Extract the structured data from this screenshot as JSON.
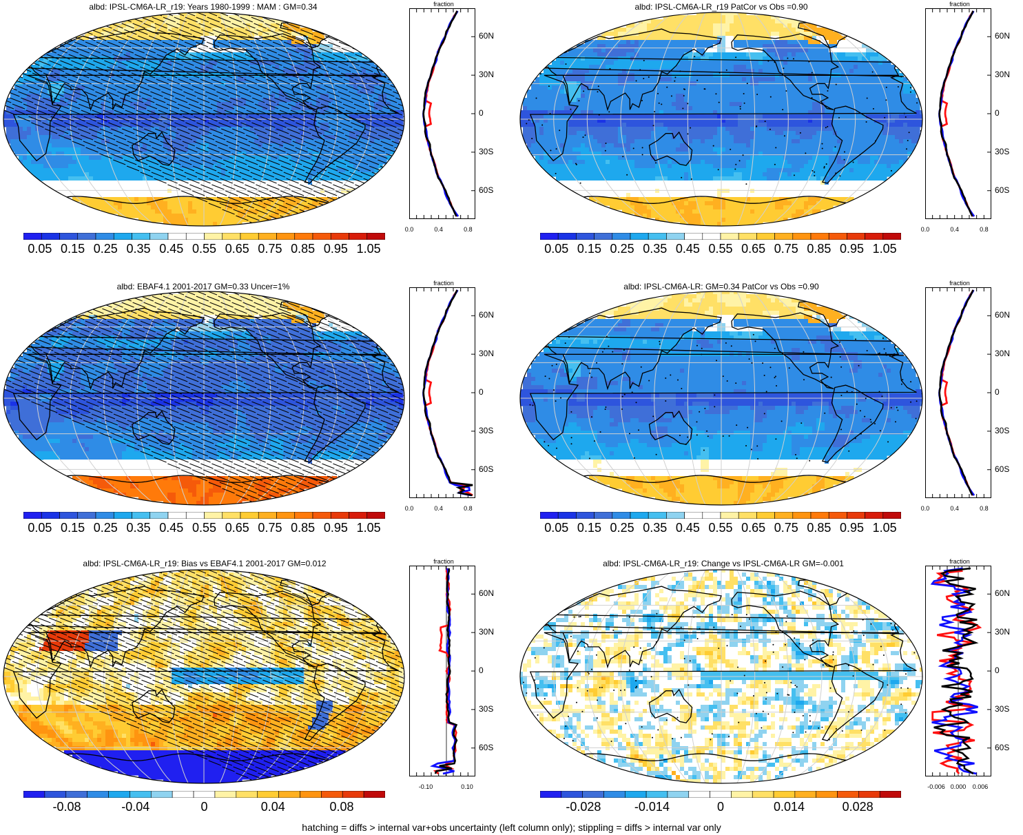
{
  "figure": {
    "footer": "hatching = diffs > internal var+obs uncertainty (left column only); stippling = diffs > internal var only",
    "colors": {
      "seq_scale": [
        "#2020f0",
        "#1a33e6",
        "#2e55dd",
        "#3f6fd8",
        "#2f8ce6",
        "#1ea8ee",
        "#45bff0",
        "#8fd3f0",
        "#ffffff",
        "#ffffff",
        "#fff3a6",
        "#ffe066",
        "#ffcc33",
        "#ffb020",
        "#ff9410",
        "#ff7a0a",
        "#f55a0a",
        "#e83a0a",
        "#d81c0a",
        "#c00a0a"
      ],
      "red_line": "#ff1010",
      "blue_line": "#1010ff",
      "black_line": "#000000"
    }
  },
  "panels": [
    {
      "id": "p1",
      "title": "albd: IPSL-CM6A-LR_r19: Years 1980-1999 : MAM : GM=0.34",
      "style": "albedo",
      "overlay": "hatch",
      "colorbar_labels": [
        "0.05",
        "0.15",
        "0.25",
        "0.35",
        "0.45",
        "0.55",
        "0.65",
        "0.75",
        "0.85",
        "0.95",
        "1.05"
      ],
      "profile": {
        "fraction": "fraction",
        "lats": [
          "60N",
          "30N",
          "0",
          "30S",
          "60S"
        ],
        "xticks": [
          "0.0",
          "0.4",
          "0.8"
        ],
        "xrange": [
          0,
          0.9
        ]
      }
    },
    {
      "id": "p2",
      "title": "albd: IPSL-CM6A-LR_r19 PatCor vs Obs =0.90",
      "style": "albedo",
      "overlay": "stipple",
      "colorbar_labels": [
        "0.05",
        "0.15",
        "0.25",
        "0.35",
        "0.45",
        "0.55",
        "0.65",
        "0.75",
        "0.85",
        "0.95",
        "1.05"
      ],
      "profile": {
        "fraction": "fraction",
        "lats": [
          "60N",
          "30N",
          "0",
          "30S",
          "60S"
        ],
        "xticks": [
          "0.0",
          "0.4",
          "0.8"
        ],
        "xrange": [
          0,
          0.9
        ]
      }
    },
    {
      "id": "p3",
      "title": "albd: EBAF4.1 2001-2017 GM=0.33 Uncer=1%",
      "style": "albedo_obs",
      "overlay": "hatch",
      "colorbar_labels": [
        "0.05",
        "0.15",
        "0.25",
        "0.35",
        "0.45",
        "0.55",
        "0.65",
        "0.75",
        "0.85",
        "0.95",
        "1.05"
      ],
      "profile": {
        "fraction": "fraction",
        "lats": [
          "60N",
          "30N",
          "0",
          "30S",
          "60S"
        ],
        "xticks": [
          "0.0",
          "0.4",
          "0.8"
        ],
        "xrange": [
          0,
          0.9
        ]
      }
    },
    {
      "id": "p4",
      "title": "albd: IPSL-CM6A-LR: GM=0.34 PatCor vs Obs =0.90",
      "style": "albedo",
      "overlay": "stipple",
      "colorbar_labels": [
        "0.05",
        "0.15",
        "0.25",
        "0.35",
        "0.45",
        "0.55",
        "0.65",
        "0.75",
        "0.85",
        "0.95",
        "1.05"
      ],
      "profile": {
        "fraction": "fraction",
        "lats": [
          "60N",
          "30N",
          "0",
          "30S",
          "60S"
        ],
        "xticks": [
          "0.0",
          "0.4",
          "0.8"
        ],
        "xrange": [
          0,
          0.9
        ]
      }
    },
    {
      "id": "p5",
      "title": "albd: IPSL-CM6A-LR_r19: Bias vs EBAF4.1 2001-2017 GM=0.012",
      "style": "bias",
      "overlay": "hatch",
      "colorbar_labels": [
        "-0.08",
        "-0.04",
        "0",
        "0.04",
        "0.08"
      ],
      "profile": {
        "fraction": "fraction",
        "lats": [
          "60N",
          "30N",
          "0",
          "30S",
          "60S"
        ],
        "xticks": [
          "-0.10",
          "0.10"
        ],
        "xrange": [
          -0.18,
          0.14
        ]
      }
    },
    {
      "id": "p6",
      "title": "albd: IPSL-CM6A-LR_r19: Change vs IPSL-CM6A-LR GM=-0.001",
      "style": "change",
      "overlay": "stipple",
      "colorbar_labels": [
        "-0.028",
        "-0.014",
        "0",
        "0.014",
        "0.028"
      ],
      "profile": {
        "fraction": "fraction",
        "lats": [
          "60N",
          "30N",
          "0",
          "30S",
          "60S"
        ],
        "xticks": [
          "-0.006",
          "0.000",
          "0.006"
        ],
        "xrange": [
          -0.009,
          0.009
        ]
      }
    }
  ]
}
